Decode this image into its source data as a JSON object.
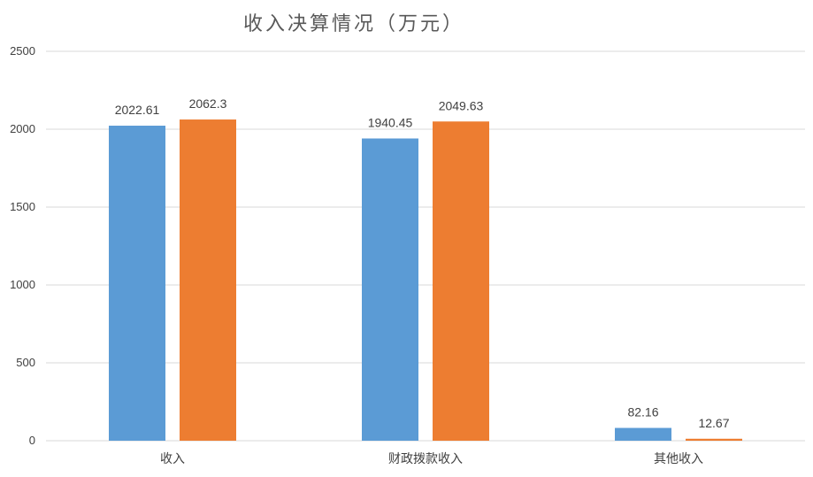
{
  "chart_data": {
    "type": "bar",
    "title": "收入决算情况（万元）",
    "categories": [
      "收入",
      "财政拨款收入",
      "其他收入"
    ],
    "series": [
      {
        "values": [
          2022.61,
          1940.45,
          82.16
        ],
        "color": "#5B9BD5"
      },
      {
        "values": [
          2062.3,
          2049.63,
          12.67
        ],
        "color": "#ED7D31"
      }
    ],
    "data_labels": [
      [
        "2022.61",
        "1940.45",
        "82.16"
      ],
      [
        "2062.3",
        "2049.63",
        "12.67"
      ]
    ],
    "yticks": [
      0,
      500,
      1000,
      1500,
      2000,
      2500
    ],
    "ylim": [
      0,
      2500
    ],
    "xlabel": "",
    "ylabel": "",
    "grid": true,
    "legend": "none"
  }
}
